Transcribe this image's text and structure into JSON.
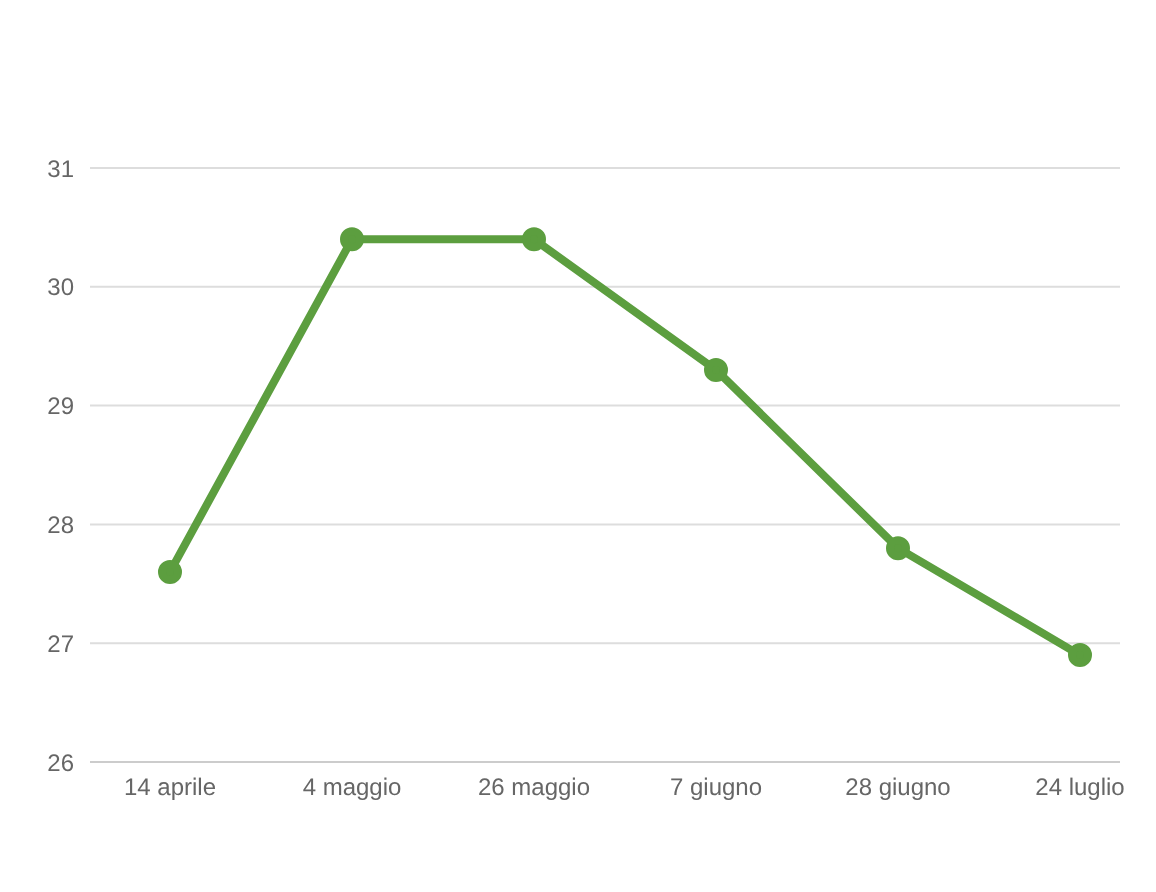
{
  "chart_data": {
    "type": "line",
    "categories": [
      "14 aprile",
      "4 maggio",
      "26 maggio",
      "7 giugno",
      "28 giugno",
      "24 luglio"
    ],
    "series": [
      {
        "color": "#5c9e3f",
        "values": [
          27.6,
          30.4,
          30.4,
          29.3,
          27.8,
          26.9
        ]
      }
    ],
    "ylim": [
      26,
      31
    ],
    "yticks": [
      26,
      27,
      28,
      29,
      30,
      31
    ],
    "grid": "y",
    "marker": "circle",
    "line_style": "solid"
  }
}
